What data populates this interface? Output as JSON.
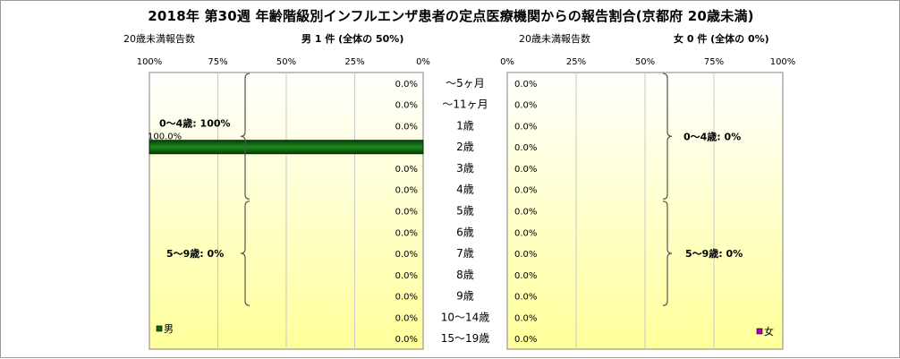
{
  "title": "2018年 第30週 年齢階級別インフルエンザ患者の定点医療機関からの報告割合(京都府 20歳未満)",
  "left_panel": {
    "count_label": "20歳未満報告数",
    "summary": "男 1 件  (全体の  50%)",
    "legend": "男",
    "groups": [
      "0～4歳: 100%",
      "5～9歳: 0%"
    ]
  },
  "right_panel": {
    "count_label": "20歳未満報告数",
    "summary": "女 0 件  (全体の  0%)",
    "legend": "女",
    "groups": [
      "0～4歳: 0%",
      "5～9歳: 0%"
    ]
  },
  "chart_data": {
    "type": "bar",
    "orientation": "horizontal-pyramid",
    "categories": [
      "～5ヶ月",
      "～11ヶ月",
      "1歳",
      "2歳",
      "3歳",
      "4歳",
      "5歳",
      "6歳",
      "7歳",
      "8歳",
      "9歳",
      "10～14歳",
      "15～19歳"
    ],
    "series": [
      {
        "name": "男",
        "color": "#0f6a0f",
        "values": [
          0,
          0,
          0,
          100,
          0,
          0,
          0,
          0,
          0,
          0,
          0,
          0,
          0
        ],
        "labels": [
          "0.0%",
          "0.0%",
          "0.0%",
          "100.0%",
          "0.0%",
          "0.0%",
          "0.0%",
          "0.0%",
          "0.0%",
          "0.0%",
          "0.0%",
          "0.0%",
          "0.0%"
        ]
      },
      {
        "name": "女",
        "color": "#b400b4",
        "values": [
          0,
          0,
          0,
          0,
          0,
          0,
          0,
          0,
          0,
          0,
          0,
          0,
          0
        ],
        "labels": [
          "0.0%",
          "0.0%",
          "0.0%",
          "0.0%",
          "0.0%",
          "0.0%",
          "0.0%",
          "0.0%",
          "0.0%",
          "0.0%",
          "0.0%",
          "0.0%",
          "0.0%"
        ]
      }
    ],
    "x_ticks_left": [
      "100%",
      "75%",
      "50%",
      "25%",
      "0%"
    ],
    "x_ticks_right": [
      "0%",
      "25%",
      "50%",
      "75%",
      "100%"
    ],
    "xlim": [
      0,
      100
    ],
    "grid": true,
    "colors": {
      "plot_gradient_top": "#ffffff",
      "plot_gradient_bottom": "#ffff99",
      "grid": "#c8c8c8",
      "border": "#808080"
    }
  }
}
